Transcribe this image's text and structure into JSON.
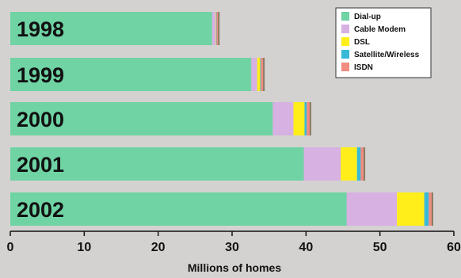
{
  "chart_data": {
    "type": "bar",
    "orientation": "horizontal",
    "stacked": true,
    "categories": [
      "1998",
      "1999",
      "2000",
      "2001",
      "2002"
    ],
    "series": [
      {
        "name": "Dial-up",
        "color": "#6fd3a4",
        "values": [
          27.3,
          32.6,
          35.5,
          39.7,
          45.5
        ]
      },
      {
        "name": "Cable Modem",
        "color": "#d6b1e2",
        "values": [
          0.5,
          0.8,
          2.8,
          5.0,
          6.8
        ]
      },
      {
        "name": "DSL",
        "color": "#ffee1a",
        "values": [
          0.05,
          0.4,
          1.5,
          2.2,
          3.7
        ]
      },
      {
        "name": "Satellite/Wireless",
        "color": "#39b9d8",
        "values": [
          0.05,
          0.1,
          0.3,
          0.5,
          0.6
        ]
      },
      {
        "name": "ISDN",
        "color": "#f08c80",
        "values": [
          0.3,
          0.4,
          0.5,
          0.5,
          0.5
        ]
      }
    ],
    "xlim": [
      0,
      60
    ],
    "xticks": [
      0,
      10,
      20,
      30,
      40,
      50,
      60
    ],
    "xlabel": "Millions of homes",
    "ylabel": "",
    "title": "",
    "grid": false,
    "legend_position": "top-right"
  }
}
